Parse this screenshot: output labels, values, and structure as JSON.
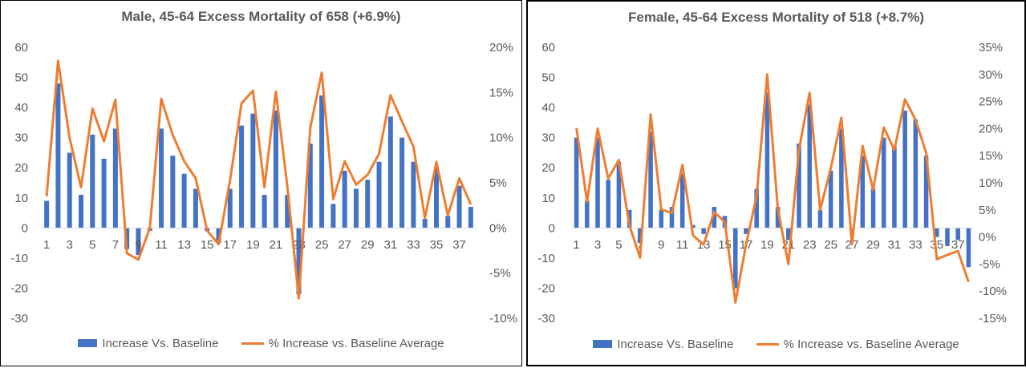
{
  "chart_data": [
    {
      "type": "bar+line",
      "title": "Male, 45-64 Excess Mortality of 658 (+6.9%)",
      "categories": [
        1,
        2,
        3,
        4,
        5,
        6,
        7,
        8,
        9,
        10,
        11,
        12,
        13,
        14,
        15,
        16,
        17,
        18,
        19,
        20,
        21,
        22,
        23,
        24,
        25,
        26,
        27,
        28,
        29,
        30,
        31,
        32,
        33,
        34,
        35,
        36,
        37,
        38
      ],
      "x_tick_labels": [
        "1",
        "3",
        "5",
        "7",
        "9",
        "11",
        "13",
        "15",
        "17",
        "19",
        "21",
        "23",
        "25",
        "27",
        "29",
        "31",
        "33",
        "35",
        "37"
      ],
      "y_left": {
        "ylim": [
          -30,
          60
        ],
        "ticks": [
          "60",
          "50",
          "40",
          "30",
          "20",
          "10",
          "0",
          "-10",
          "-20",
          "-30"
        ]
      },
      "y_right": {
        "ylim": [
          -10,
          20
        ],
        "ticks": [
          "20%",
          "15%",
          "10%",
          "5%",
          "0%",
          "-5%",
          "-10%"
        ]
      },
      "series": [
        {
          "name": "Increase Vs. Baseline",
          "type": "bar",
          "axis": "left",
          "color": "#4472c4",
          "values": [
            9,
            48,
            25,
            11,
            31,
            23,
            33,
            -7,
            -9,
            -1,
            33,
            24,
            18,
            13,
            -1,
            -5,
            13,
            34,
            38,
            11,
            39,
            11,
            -22,
            28,
            44,
            8,
            19,
            13,
            16,
            22,
            37,
            30,
            22,
            3,
            20,
            4,
            14,
            7
          ]
        },
        {
          "name": "% Increase vs. Baseline Average",
          "type": "line",
          "axis": "right",
          "color": "#ed7d31",
          "values": [
            3.5,
            18.5,
            10,
            4.5,
            13.2,
            9.6,
            14.2,
            -2.8,
            -3.5,
            0,
            14.3,
            10.3,
            7.4,
            5.5,
            -0.3,
            -1.8,
            5.3,
            13.8,
            15.2,
            4.5,
            15.1,
            4.6,
            -7.8,
            11.1,
            17.2,
            3.2,
            7.4,
            4.8,
            5.9,
            8.2,
            14.7,
            11.8,
            9,
            1.1,
            7.3,
            1.4,
            5.5,
            2.6
          ]
        }
      ],
      "legend_position": "bottom"
    },
    {
      "type": "bar+line",
      "title": "Female, 45-64 Excess Mortality of 518 (+8.7%)",
      "categories": [
        1,
        2,
        3,
        4,
        5,
        6,
        7,
        8,
        9,
        10,
        11,
        12,
        13,
        14,
        15,
        16,
        17,
        18,
        19,
        20,
        21,
        22,
        23,
        24,
        25,
        26,
        27,
        28,
        29,
        30,
        31,
        32,
        33,
        34,
        35,
        36,
        37,
        38
      ],
      "x_tick_labels": [
        "1",
        "3",
        "5",
        "7",
        "9",
        "11",
        "13",
        "15",
        "17",
        "19",
        "21",
        "23",
        "25",
        "27",
        "29",
        "31",
        "33",
        "35",
        "37"
      ],
      "y_left": {
        "ylim": [
          -30,
          60
        ],
        "ticks": [
          "60",
          "50",
          "40",
          "30",
          "20",
          "10",
          "0",
          "-10",
          "-20",
          "-30"
        ]
      },
      "y_right": {
        "ylim": [
          -15,
          35
        ],
        "ticks": [
          "35%",
          "30%",
          "25%",
          "20%",
          "15%",
          "10%",
          "5%",
          "0%",
          "-5%",
          "-10%",
          "-15%"
        ]
      },
      "series": [
        {
          "name": "Increase Vs. Baseline",
          "type": "bar",
          "axis": "left",
          "color": "#4472c4",
          "values": [
            30,
            9,
            30,
            16,
            22,
            6,
            -5,
            32,
            6,
            7,
            18,
            1,
            -2,
            7,
            4,
            -20,
            -2,
            13,
            45,
            7,
            -4,
            28,
            41,
            6,
            19,
            33,
            -2,
            24,
            13,
            30,
            27,
            39,
            36,
            24,
            -3,
            -6,
            -4,
            -13
          ]
        },
        {
          "name": "% Increase vs. Baseline Average",
          "type": "line",
          "axis": "right",
          "color": "#ed7d31",
          "values": [
            20.1,
            6.5,
            20,
            10.8,
            14.2,
            2.1,
            -3.8,
            22.6,
            5.1,
            4.4,
            13.3,
            0.3,
            -1.4,
            4.6,
            2.8,
            -12.1,
            -1.4,
            7.6,
            30,
            5.2,
            -5,
            16.1,
            26.6,
            5,
            12.7,
            22,
            -1.3,
            16.8,
            8.7,
            20.2,
            16.1,
            25.4,
            21.6,
            15.5,
            -4.1,
            -3.3,
            -2.6,
            -8.3
          ]
        }
      ],
      "legend_position": "bottom"
    }
  ]
}
